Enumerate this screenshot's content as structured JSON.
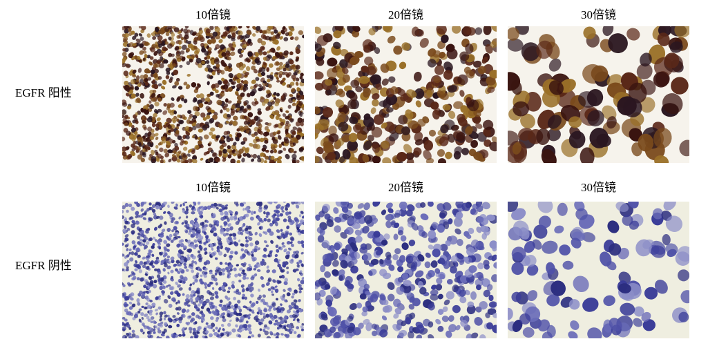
{
  "rows": [
    {
      "label": "EGFR 阳性",
      "stain": "positive",
      "panels": [
        {
          "magnification": "10倍镜"
        },
        {
          "magnification": "20倍镜"
        },
        {
          "magnification": "30倍镜"
        }
      ]
    },
    {
      "label": "EGFR 阴性",
      "stain": "negative",
      "panels": [
        {
          "magnification": "10倍镜"
        },
        {
          "magnification": "20倍镜"
        },
        {
          "magnification": "30倍镜"
        }
      ]
    }
  ],
  "colors": {
    "positive_background": "#f6f3ec",
    "positive_cells": [
      "#3a1410",
      "#5a2818",
      "#7a4a1c",
      "#9a7028",
      "#2a1620"
    ],
    "negative_background": "#efeee0",
    "negative_cells": [
      "#3a3c98",
      "#5052a8",
      "#6a6cb8",
      "#8c8ec8",
      "#2c2e80"
    ]
  }
}
